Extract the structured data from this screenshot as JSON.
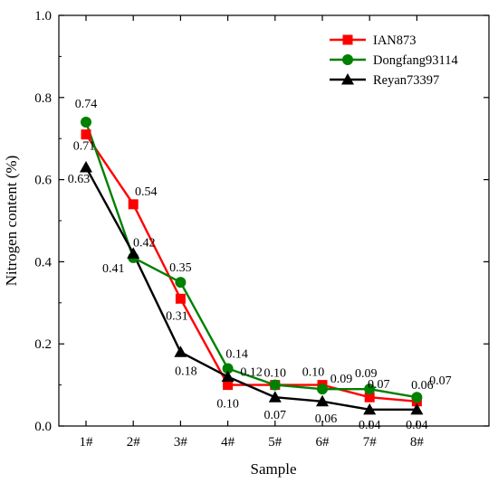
{
  "chart_data": {
    "type": "line",
    "title": "",
    "xlabel": "Sample",
    "ylabel": "Nitrogen content (%)",
    "categories": [
      "1#",
      "2#",
      "3#",
      "4#",
      "5#",
      "6#",
      "7#",
      "8#"
    ],
    "ylim": [
      0,
      1.0
    ],
    "yticks": [
      "0.0",
      "0.2",
      "0.4",
      "0.6",
      "0.8",
      "1.0"
    ],
    "grid": false,
    "legend_position": "top-right",
    "series": [
      {
        "name": "IAN873",
        "color": "#ff0000",
        "marker": "square",
        "values": [
          0.71,
          0.54,
          0.31,
          0.1,
          0.1,
          0.1,
          0.07,
          0.06
        ],
        "labels": [
          "0.71",
          "0.54",
          "0.31",
          "0.10",
          "0.10",
          "0.10",
          "0.07",
          "0.06"
        ]
      },
      {
        "name": "Dongfang93114",
        "color": "#008000",
        "marker": "circle",
        "values": [
          0.74,
          0.41,
          0.35,
          0.14,
          0.1,
          0.09,
          0.09,
          0.07
        ],
        "labels": [
          "0.74",
          "0.41",
          "0.35",
          "0.14",
          "",
          "0.09",
          "0.09",
          "0.07"
        ]
      },
      {
        "name": "Reyan73397",
        "color": "#000000",
        "marker": "triangle",
        "values": [
          0.63,
          0.42,
          0.18,
          0.12,
          0.07,
          0.06,
          0.04,
          0.04
        ],
        "labels": [
          "0.63",
          "0.42",
          "0.18",
          "0.12",
          "0.07",
          "0.06",
          "0.04",
          "0.04"
        ]
      }
    ]
  }
}
